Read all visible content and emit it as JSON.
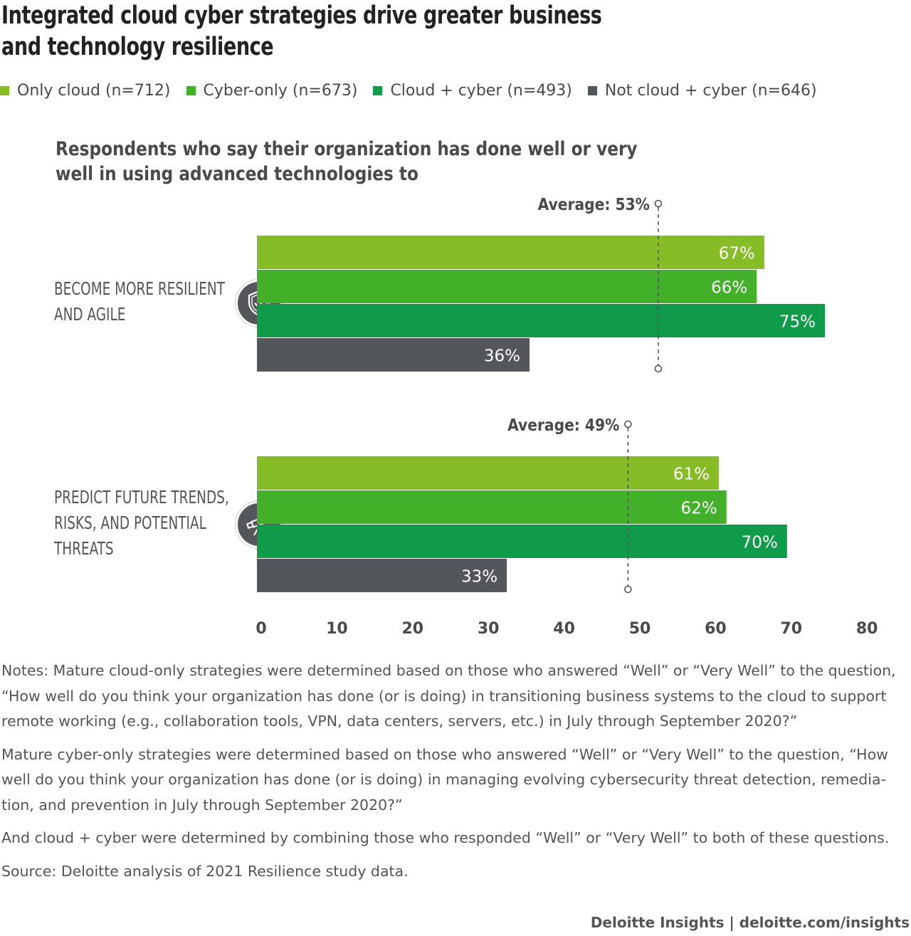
{
  "title": "Integrated cloud cyber strategies drive greater business and technology resilience",
  "legend": [
    {
      "label": "Only cloud (n=712)",
      "color": "#86bc25"
    },
    {
      "label": "Cyber-only (n=673)",
      "color": "#43b02a"
    },
    {
      "label": "Cloud + cyber (n=493)",
      "color": "#0f9b4a"
    },
    {
      "label": "Not cloud + cyber (n=646)",
      "color": "#53565a"
    }
  ],
  "subtitle": "Respondents who say their organization has done well or very well in using advanced technologies to",
  "categories": [
    {
      "label": "Become more resilient and agile",
      "icon": "shield-icon"
    },
    {
      "label": "Predict future trends, risks, and potential threats",
      "icon": "telescope-icon"
    }
  ],
  "chart_data": {
    "type": "bar",
    "orientation": "horizontal",
    "categories": [
      "Become more resilient and agile",
      "Predict future trends, risks, and potential threats"
    ],
    "series": [
      {
        "name": "Only cloud (n=712)",
        "values": [
          67,
          61
        ],
        "labels": [
          "67%",
          "61%"
        ],
        "color": "#86bc25"
      },
      {
        "name": "Cyber-only (n=673)",
        "values": [
          66,
          62
        ],
        "labels": [
          "66%",
          "62%"
        ],
        "color": "#43b02a"
      },
      {
        "name": "Cloud + cyber (n=493)",
        "values": [
          75,
          70
        ],
        "labels": [
          "75%",
          "70%"
        ],
        "color": "#0f9b4a"
      },
      {
        "name": "Not cloud + cyber (n=646)",
        "values": [
          36,
          33
        ],
        "labels": [
          "36%",
          "33%"
        ],
        "color": "#53565a"
      }
    ],
    "averages": [
      {
        "value": 53,
        "label": "Average: 53%"
      },
      {
        "value": 49,
        "label": "Average: 49%"
      }
    ],
    "xticks": [
      "0",
      "10",
      "20",
      "30",
      "40",
      "50",
      "60",
      "70",
      "80"
    ],
    "xlim": [
      0,
      80
    ],
    "grid": false
  },
  "notes": [
    "Notes: Mature cloud-only strategies were determined based on those who answered “Well” or “Very Well” to the question, “How well do you think your organization has done (or is doing) in transitioning business systems to the cloud to support remote working (e.g., collaboration tools, VPN, data centers, servers, etc.) in July through September 2020?”",
    "Mature cyber-only strategies were determined based on those who answered “Well” or “Very Well” to the question, “How well do you think your organization has done (or is doing) in managing evolving cybersecurity threat detection, remedia-tion, and prevention in July through September 2020?”",
    "And cloud + cyber were determined by combining those who responded “Well” or “Very Well” to both of these questions.",
    "Source: Deloitte analysis of 2021 Resilience study data."
  ],
  "footer": "Deloitte Insights | deloitte.com/insights"
}
